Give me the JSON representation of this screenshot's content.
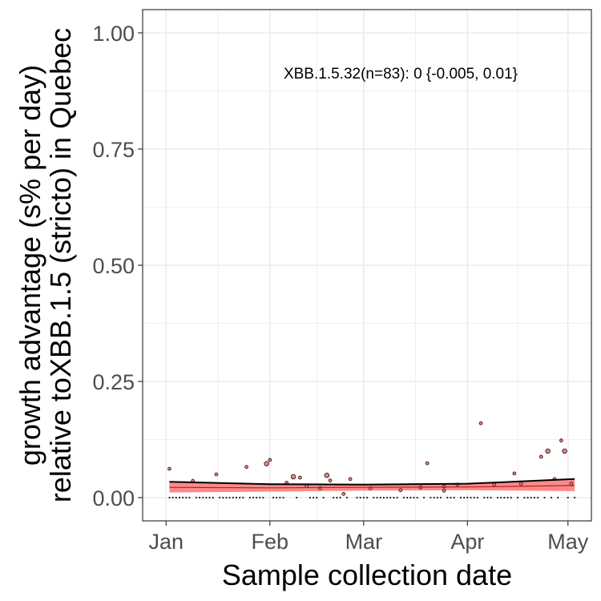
{
  "chart_data": {
    "type": "scatter",
    "xlabel": "Sample collection date",
    "ylabel_lines": [
      "growth advantage (s% per day)",
      "relative toXBB.1.5 (stricto) in Quebec"
    ],
    "annotation": "XBB.1.5.32(n=83): 0 {-0.005, 0.01}",
    "x_ticks": [
      {
        "label": "Jan",
        "date": "2023-01-01"
      },
      {
        "label": "Feb",
        "date": "2023-02-01"
      },
      {
        "label": "Mar",
        "date": "2023-03-01"
      },
      {
        "label": "Apr",
        "date": "2023-04-01"
      },
      {
        "label": "May",
        "date": "2023-05-01"
      }
    ],
    "y_ticks": [
      {
        "label": "0.00",
        "value": 0.0
      },
      {
        "label": "0.25",
        "value": 0.25
      },
      {
        "label": "0.50",
        "value": 0.5
      },
      {
        "label": "0.75",
        "value": 0.75
      },
      {
        "label": "1.00",
        "value": 1.0
      }
    ],
    "xlim": [
      "2022-12-25",
      "2023-05-08"
    ],
    "ylim": [
      -0.05,
      1.05
    ],
    "grid": true,
    "colors": {
      "points_fill": "#f08080",
      "points_stroke": "#3a1a1a",
      "ribbon": "#ff6b6b",
      "line": "#000000",
      "panel_border": "#333333",
      "grid": "#ebebeb"
    },
    "points": [
      {
        "date": "2023-01-02",
        "y": 0.062,
        "size": 1
      },
      {
        "date": "2023-01-09",
        "y": 0.036,
        "size": 1
      },
      {
        "date": "2023-01-16",
        "y": 0.05,
        "size": 1
      },
      {
        "date": "2023-01-25",
        "y": 0.066,
        "size": 1
      },
      {
        "date": "2023-01-31",
        "y": 0.073,
        "size": 2
      },
      {
        "date": "2023-02-01",
        "y": 0.081,
        "size": 1
      },
      {
        "date": "2023-02-06",
        "y": 0.032,
        "size": 1
      },
      {
        "date": "2023-02-08",
        "y": 0.045,
        "size": 2
      },
      {
        "date": "2023-02-10",
        "y": 0.043,
        "size": 1
      },
      {
        "date": "2023-02-12",
        "y": 0.025,
        "size": 1
      },
      {
        "date": "2023-02-16",
        "y": 0.02,
        "size": 1
      },
      {
        "date": "2023-02-18",
        "y": 0.048,
        "size": 2
      },
      {
        "date": "2023-02-19",
        "y": 0.037,
        "size": 1
      },
      {
        "date": "2023-02-23",
        "y": 0.008,
        "size": 1
      },
      {
        "date": "2023-02-25",
        "y": 0.04,
        "size": 1
      },
      {
        "date": "2023-03-03",
        "y": 0.02,
        "size": 1
      },
      {
        "date": "2023-03-12",
        "y": 0.016,
        "size": 1
      },
      {
        "date": "2023-03-18",
        "y": 0.022,
        "size": 1
      },
      {
        "date": "2023-03-25",
        "y": 0.024,
        "size": 1
      },
      {
        "date": "2023-03-20",
        "y": 0.074,
        "size": 1
      },
      {
        "date": "2023-03-25",
        "y": 0.015,
        "size": 1
      },
      {
        "date": "2023-03-29",
        "y": 0.028,
        "size": 1
      },
      {
        "date": "2023-04-05",
        "y": 0.16,
        "size": 1
      },
      {
        "date": "2023-04-09",
        "y": 0.028,
        "size": 1
      },
      {
        "date": "2023-04-15",
        "y": 0.052,
        "size": 1
      },
      {
        "date": "2023-04-17",
        "y": 0.03,
        "size": 1
      },
      {
        "date": "2023-04-23",
        "y": 0.088,
        "size": 1
      },
      {
        "date": "2023-04-25",
        "y": 0.1,
        "size": 2
      },
      {
        "date": "2023-04-27",
        "y": 0.04,
        "size": 1
      },
      {
        "date": "2023-04-29",
        "y": 0.123,
        "size": 1
      },
      {
        "date": "2023-04-30",
        "y": 0.1,
        "size": 2
      },
      {
        "date": "2023-05-02",
        "y": 0.03,
        "size": 1
      }
    ],
    "zero_point_dates": [
      "2023-01-02",
      "2023-01-03",
      "2023-01-04",
      "2023-01-05",
      "2023-01-06",
      "2023-01-07",
      "2023-01-08",
      "2023-01-10",
      "2023-01-11",
      "2023-01-12",
      "2023-01-13",
      "2023-01-14",
      "2023-01-15",
      "2023-01-17",
      "2023-01-18",
      "2023-01-19",
      "2023-01-20",
      "2023-01-21",
      "2023-01-22",
      "2023-01-23",
      "2023-01-24",
      "2023-01-26",
      "2023-01-27",
      "2023-01-28",
      "2023-01-29",
      "2023-01-30",
      "2023-02-02",
      "2023-02-03",
      "2023-02-04",
      "2023-02-05",
      "2023-02-09",
      "2023-02-13",
      "2023-02-14",
      "2023-02-15",
      "2023-02-17",
      "2023-02-20",
      "2023-02-21",
      "2023-02-22",
      "2023-02-24",
      "2023-02-27",
      "2023-02-28",
      "2023-03-01",
      "2023-03-02",
      "2023-03-04",
      "2023-03-05",
      "2023-03-06",
      "2023-03-07",
      "2023-03-08",
      "2023-03-09",
      "2023-03-10",
      "2023-03-11",
      "2023-03-13",
      "2023-03-14",
      "2023-03-15",
      "2023-03-16",
      "2023-03-17",
      "2023-03-19",
      "2023-03-21",
      "2023-03-22",
      "2023-03-23",
      "2023-03-24",
      "2023-03-26",
      "2023-03-27",
      "2023-03-28",
      "2023-03-30",
      "2023-03-31",
      "2023-04-01",
      "2023-04-02",
      "2023-04-03",
      "2023-04-04",
      "2023-04-06",
      "2023-04-07",
      "2023-04-08",
      "2023-04-10",
      "2023-04-11",
      "2023-04-12",
      "2023-04-13",
      "2023-04-14",
      "2023-04-16",
      "2023-04-18",
      "2023-04-19",
      "2023-04-20",
      "2023-04-21",
      "2023-04-22",
      "2023-04-24",
      "2023-04-26",
      "2023-04-28",
      "2023-05-01",
      "2023-05-03"
    ],
    "fit": {
      "x": [
        "2023-01-02",
        "2023-02-01",
        "2023-03-01",
        "2023-04-01",
        "2023-05-03"
      ],
      "y": [
        0.022,
        0.021,
        0.022,
        0.023,
        0.026
      ],
      "lower": [
        0.011,
        0.013,
        0.015,
        0.016,
        0.014
      ],
      "upper": [
        0.034,
        0.029,
        0.028,
        0.03,
        0.04
      ]
    }
  }
}
